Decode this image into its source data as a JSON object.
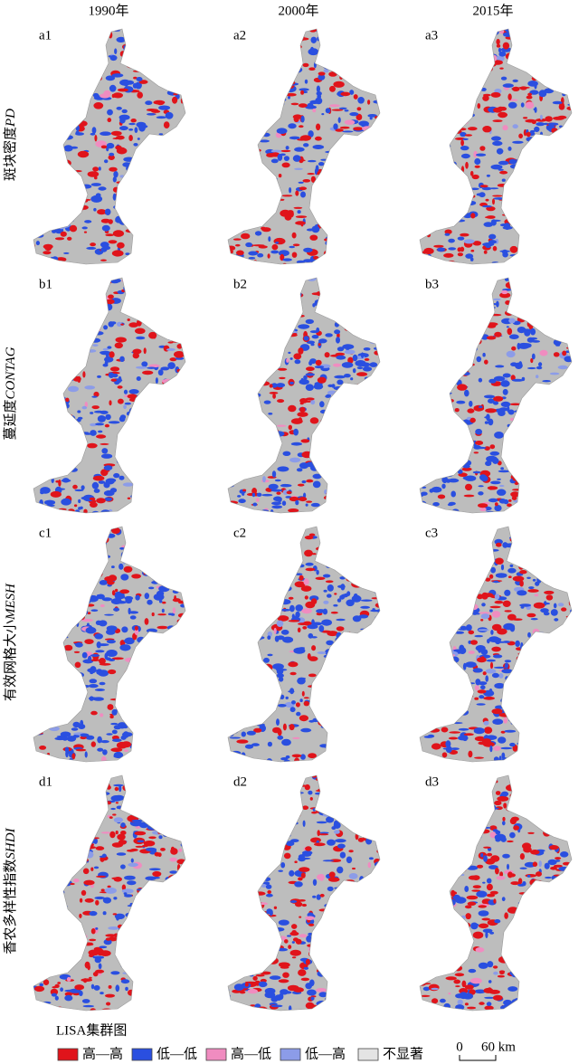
{
  "columns": [
    "1990年",
    "2000年",
    "2015年"
  ],
  "rows": [
    {
      "label": "斑块密度",
      "metric": "PD",
      "panels": [
        "a1",
        "a2",
        "a3"
      ]
    },
    {
      "label": "蔓延度",
      "metric": "CONTAG",
      "panels": [
        "b1",
        "b2",
        "b3"
      ]
    },
    {
      "label": "有效网格大小",
      "metric": "MESH",
      "panels": [
        "c1",
        "c2",
        "c3"
      ]
    },
    {
      "label": "香农多样性指数",
      "metric": "SHDI",
      "panels": [
        "d1",
        "d2",
        "d3"
      ]
    }
  ],
  "legend": {
    "title": "LISA集群图",
    "items": [
      {
        "label": "高—高",
        "color": "#e0141b"
      },
      {
        "label": "低—低",
        "color": "#2a4fe0"
      },
      {
        "label": "高—低",
        "color": "#f08cc0"
      },
      {
        "label": "低—高",
        "color": "#8c9ce8"
      },
      {
        "label": "不显著",
        "color": "#e4e4e4"
      }
    ]
  },
  "scale_bar": {
    "zero": "0",
    "label": "60 km"
  }
}
